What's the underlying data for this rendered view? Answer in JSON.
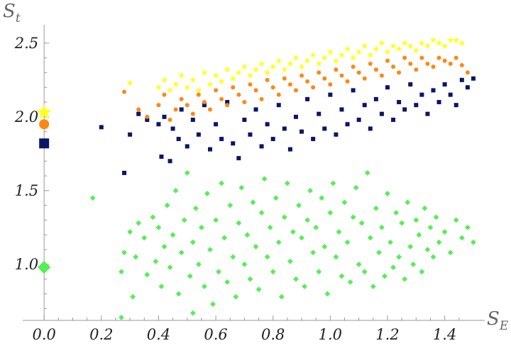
{
  "chart_data": {
    "type": "scatter",
    "xlabel": {
      "main": "S",
      "sub": "E"
    },
    "ylabel": {
      "main": "S",
      "sub": "t"
    },
    "xlim": [
      -0.05,
      1.52
    ],
    "ylim": [
      0.62,
      2.6
    ],
    "xticks": [
      {
        "value": 0.0,
        "label": "0.0"
      },
      {
        "value": 0.2,
        "label": "0.2"
      },
      {
        "value": 0.4,
        "label": "0.4"
      },
      {
        "value": 0.6,
        "label": "0.6"
      },
      {
        "value": 0.8,
        "label": "0.8"
      },
      {
        "value": 1.0,
        "label": "1.0"
      },
      {
        "value": 1.2,
        "label": "1.2"
      },
      {
        "value": 1.4,
        "label": "1.4"
      }
    ],
    "yticks": [
      {
        "value": 1.0,
        "label": "1.0"
      },
      {
        "value": 1.5,
        "label": "1.5"
      },
      {
        "value": 2.0,
        "label": "2.0"
      },
      {
        "value": 2.5,
        "label": "2.5"
      }
    ],
    "grid": false,
    "legend": "none",
    "series": [
      {
        "marker": "diamond",
        "color": "#55ee55",
        "highlight": {
          "x": 0.0,
          "y": 0.98
        },
        "points": [
          [
            0.17,
            1.45
          ],
          [
            0.27,
            0.64
          ],
          [
            0.27,
            0.95
          ],
          [
            0.28,
            1.08
          ],
          [
            0.3,
            1.22
          ],
          [
            0.31,
            0.78
          ],
          [
            0.32,
            1.05
          ],
          [
            0.33,
            1.28
          ],
          [
            0.35,
            1.18
          ],
          [
            0.36,
            0.93
          ],
          [
            0.38,
            1.32
          ],
          [
            0.39,
            1.02
          ],
          [
            0.4,
            1.25
          ],
          [
            0.41,
            0.85
          ],
          [
            0.42,
            1.12
          ],
          [
            0.43,
            1.4
          ],
          [
            0.44,
            0.98
          ],
          [
            0.45,
            1.2
          ],
          [
            0.46,
            1.5
          ],
          [
            0.47,
            0.8
          ],
          [
            0.48,
            1.08
          ],
          [
            0.49,
            1.3
          ],
          [
            0.5,
            1.62
          ],
          [
            0.51,
            0.92
          ],
          [
            0.52,
            0.67
          ],
          [
            0.52,
            1.15
          ],
          [
            0.53,
            1.38
          ],
          [
            0.54,
            1.0
          ],
          [
            0.55,
            1.25
          ],
          [
            0.56,
            0.85
          ],
          [
            0.57,
            1.48
          ],
          [
            0.58,
            1.1
          ],
          [
            0.59,
            0.73
          ],
          [
            0.6,
            1.3
          ],
          [
            0.61,
            0.95
          ],
          [
            0.62,
            1.55
          ],
          [
            0.63,
            1.18
          ],
          [
            0.64,
            0.88
          ],
          [
            0.65,
            1.4
          ],
          [
            0.66,
            1.05
          ],
          [
            0.67,
            0.78
          ],
          [
            0.68,
            1.28
          ],
          [
            0.69,
            1.52
          ],
          [
            0.7,
            1.0
          ],
          [
            0.71,
            1.2
          ],
          [
            0.72,
            0.9
          ],
          [
            0.73,
            1.42
          ],
          [
            0.74,
            1.12
          ],
          [
            0.75,
            0.83
          ],
          [
            0.76,
            1.35
          ],
          [
            0.77,
            1.58
          ],
          [
            0.78,
            1.05
          ],
          [
            0.79,
            1.25
          ],
          [
            0.8,
            0.95
          ],
          [
            0.81,
            1.45
          ],
          [
            0.82,
            1.15
          ],
          [
            0.83,
            0.78
          ],
          [
            0.84,
            1.32
          ],
          [
            0.85,
            1.55
          ],
          [
            0.86,
            1.02
          ],
          [
            0.87,
            1.22
          ],
          [
            0.88,
            0.9
          ],
          [
            0.89,
            1.4
          ],
          [
            0.9,
            1.18
          ],
          [
            0.91,
            0.85
          ],
          [
            0.92,
            1.3
          ],
          [
            0.93,
            1.5
          ],
          [
            0.94,
            1.08
          ],
          [
            0.95,
            1.25
          ],
          [
            0.96,
            0.95
          ],
          [
            0.97,
            1.45
          ],
          [
            0.98,
            1.12
          ],
          [
            0.99,
            0.8
          ],
          [
            1.0,
            1.35
          ],
          [
            1.01,
            1.55
          ],
          [
            1.02,
            1.05
          ],
          [
            1.03,
            1.22
          ],
          [
            1.04,
            0.92
          ],
          [
            1.05,
            1.42
          ],
          [
            1.06,
            1.15
          ],
          [
            1.07,
            0.88
          ],
          [
            1.08,
            1.32
          ],
          [
            1.09,
            1.52
          ],
          [
            1.1,
            1.0
          ],
          [
            1.11,
            1.28
          ],
          [
            1.12,
            0.95
          ],
          [
            1.13,
            1.62
          ],
          [
            1.14,
            1.18
          ],
          [
            1.15,
            0.85
          ],
          [
            1.16,
            1.38
          ],
          [
            1.17,
            1.08
          ],
          [
            1.18,
            1.25
          ],
          [
            1.19,
            0.92
          ],
          [
            1.2,
            1.48
          ],
          [
            1.21,
            1.15
          ],
          [
            1.22,
            0.98
          ],
          [
            1.23,
            1.35
          ],
          [
            1.24,
            1.05
          ],
          [
            1.25,
            1.28
          ],
          [
            1.26,
            0.9
          ],
          [
            1.27,
            1.42
          ],
          [
            1.28,
            1.12
          ],
          [
            1.29,
            1.0
          ],
          [
            1.3,
            1.3
          ],
          [
            1.31,
            1.2
          ],
          [
            1.32,
            0.95
          ],
          [
            1.33,
            1.38
          ],
          [
            1.34,
            1.1
          ],
          [
            1.35,
            1.25
          ],
          [
            1.36,
            1.05
          ],
          [
            1.37,
            1.32
          ],
          [
            1.38,
            1.15
          ],
          [
            1.4,
            1.22
          ],
          [
            1.42,
            1.08
          ],
          [
            1.44,
            1.3
          ],
          [
            1.46,
            1.18
          ],
          [
            1.48,
            1.25
          ],
          [
            1.5,
            1.15
          ]
        ]
      },
      {
        "marker": "square",
        "color": "#0b1666",
        "highlight": {
          "x": 0.0,
          "y": 1.82
        },
        "points": [
          [
            0.2,
            1.93
          ],
          [
            0.28,
            1.62
          ],
          [
            0.3,
            1.88
          ],
          [
            0.33,
            2.02
          ],
          [
            0.36,
            1.98
          ],
          [
            0.4,
            1.95
          ],
          [
            0.41,
            1.73
          ],
          [
            0.42,
            2.0
          ],
          [
            0.44,
            1.7
          ],
          [
            0.45,
            1.92
          ],
          [
            0.47,
            1.85
          ],
          [
            0.48,
            2.05
          ],
          [
            0.5,
            1.8
          ],
          [
            0.52,
            1.98
          ],
          [
            0.54,
            1.88
          ],
          [
            0.56,
            2.08
          ],
          [
            0.58,
            1.78
          ],
          [
            0.6,
            1.95
          ],
          [
            0.62,
            1.85
          ],
          [
            0.64,
            2.1
          ],
          [
            0.66,
            1.82
          ],
          [
            0.68,
            1.72
          ],
          [
            0.7,
            1.98
          ],
          [
            0.72,
            1.88
          ],
          [
            0.74,
            2.05
          ],
          [
            0.76,
            1.8
          ],
          [
            0.78,
            1.95
          ],
          [
            0.8,
            1.85
          ],
          [
            0.82,
            2.08
          ],
          [
            0.84,
            1.92
          ],
          [
            0.86,
            1.78
          ],
          [
            0.88,
            2.0
          ],
          [
            0.9,
            1.9
          ],
          [
            0.92,
            2.12
          ],
          [
            0.94,
            1.85
          ],
          [
            0.96,
            2.02
          ],
          [
            0.98,
            1.92
          ],
          [
            1.0,
            2.15
          ],
          [
            1.02,
            1.88
          ],
          [
            1.04,
            2.05
          ],
          [
            1.06,
            1.95
          ],
          [
            1.08,
            2.18
          ],
          [
            1.1,
            1.98
          ],
          [
            1.12,
            2.08
          ],
          [
            1.14,
            1.92
          ],
          [
            1.16,
            2.12
          ],
          [
            1.18,
            2.02
          ],
          [
            1.2,
            2.2
          ],
          [
            1.22,
            1.98
          ],
          [
            1.24,
            2.1
          ],
          [
            1.26,
            2.05
          ],
          [
            1.28,
            2.22
          ],
          [
            1.3,
            2.08
          ],
          [
            1.32,
            2.15
          ],
          [
            1.34,
            2.02
          ],
          [
            1.36,
            2.18
          ],
          [
            1.38,
            2.1
          ],
          [
            1.4,
            2.22
          ],
          [
            1.42,
            2.15
          ],
          [
            1.44,
            2.08
          ],
          [
            1.46,
            2.25
          ],
          [
            1.48,
            2.2
          ],
          [
            1.5,
            2.26
          ]
        ]
      },
      {
        "marker": "circle",
        "color": "#ff8811",
        "highlight": {
          "x": 0.0,
          "y": 1.95
        },
        "points": [
          [
            0.28,
            2.17
          ],
          [
            0.33,
            2.05
          ],
          [
            0.36,
            2.0
          ],
          [
            0.4,
            2.08
          ],
          [
            0.42,
            2.15
          ],
          [
            0.44,
            1.98
          ],
          [
            0.46,
            2.05
          ],
          [
            0.48,
            2.12
          ],
          [
            0.5,
            2.08
          ],
          [
            0.52,
            2.02
          ],
          [
            0.54,
            2.15
          ],
          [
            0.56,
            2.1
          ],
          [
            0.58,
            2.05
          ],
          [
            0.6,
            2.18
          ],
          [
            0.62,
            2.12
          ],
          [
            0.64,
            2.08
          ],
          [
            0.66,
            2.2
          ],
          [
            0.68,
            2.15
          ],
          [
            0.7,
            2.1
          ],
          [
            0.72,
            2.22
          ],
          [
            0.74,
            2.18
          ],
          [
            0.76,
            2.12
          ],
          [
            0.78,
            2.25
          ],
          [
            0.8,
            2.2
          ],
          [
            0.82,
            2.15
          ],
          [
            0.84,
            2.26
          ],
          [
            0.86,
            2.22
          ],
          [
            0.88,
            2.18
          ],
          [
            0.9,
            2.28
          ],
          [
            0.92,
            2.24
          ],
          [
            0.94,
            2.2
          ],
          [
            0.96,
            2.3
          ],
          [
            0.98,
            2.26
          ],
          [
            1.0,
            2.22
          ],
          [
            1.02,
            2.32
          ],
          [
            1.04,
            2.28
          ],
          [
            1.06,
            2.24
          ],
          [
            1.08,
            2.34
          ],
          [
            1.1,
            2.3
          ],
          [
            1.12,
            2.26
          ],
          [
            1.14,
            2.36
          ],
          [
            1.16,
            2.32
          ],
          [
            1.18,
            2.28
          ],
          [
            1.2,
            2.38
          ],
          [
            1.22,
            2.34
          ],
          [
            1.24,
            2.3
          ],
          [
            1.26,
            2.4
          ],
          [
            1.28,
            2.36
          ],
          [
            1.3,
            2.32
          ],
          [
            1.32,
            2.4
          ],
          [
            1.34,
            2.36
          ],
          [
            1.36,
            2.34
          ],
          [
            1.38,
            2.4
          ],
          [
            1.4,
            2.38
          ],
          [
            1.42,
            2.36
          ],
          [
            1.44,
            2.4
          ],
          [
            1.46,
            2.35
          ],
          [
            1.48,
            2.3
          ]
        ]
      },
      {
        "marker": "star",
        "color": "#ffff22",
        "highlight": {
          "x": 0.0,
          "y": 2.03
        },
        "points": [
          [
            0.3,
            2.23
          ],
          [
            0.4,
            2.2
          ],
          [
            0.42,
            2.25
          ],
          [
            0.44,
            2.18
          ],
          [
            0.46,
            2.22
          ],
          [
            0.48,
            2.28
          ],
          [
            0.5,
            2.2
          ],
          [
            0.52,
            2.25
          ],
          [
            0.54,
            2.18
          ],
          [
            0.56,
            2.3
          ],
          [
            0.58,
            2.22
          ],
          [
            0.6,
            2.28
          ],
          [
            0.62,
            2.24
          ],
          [
            0.64,
            2.32
          ],
          [
            0.66,
            2.26
          ],
          [
            0.68,
            2.3
          ],
          [
            0.7,
            2.34
          ],
          [
            0.72,
            2.28
          ],
          [
            0.74,
            2.32
          ],
          [
            0.76,
            2.36
          ],
          [
            0.78,
            2.3
          ],
          [
            0.8,
            2.34
          ],
          [
            0.82,
            2.38
          ],
          [
            0.84,
            2.32
          ],
          [
            0.86,
            2.36
          ],
          [
            0.88,
            2.4
          ],
          [
            0.9,
            2.34
          ],
          [
            0.92,
            2.38
          ],
          [
            0.94,
            2.42
          ],
          [
            0.96,
            2.36
          ],
          [
            0.98,
            2.4
          ],
          [
            1.0,
            2.44
          ],
          [
            1.02,
            2.38
          ],
          [
            1.04,
            2.42
          ],
          [
            1.06,
            2.46
          ],
          [
            1.08,
            2.4
          ],
          [
            1.1,
            2.44
          ],
          [
            1.12,
            2.48
          ],
          [
            1.14,
            2.42
          ],
          [
            1.16,
            2.46
          ],
          [
            1.18,
            2.5
          ],
          [
            1.2,
            2.44
          ],
          [
            1.22,
            2.48
          ],
          [
            1.24,
            2.46
          ],
          [
            1.26,
            2.5
          ],
          [
            1.28,
            2.48
          ],
          [
            1.3,
            2.45
          ],
          [
            1.32,
            2.5
          ],
          [
            1.34,
            2.48
          ],
          [
            1.36,
            2.52
          ],
          [
            1.38,
            2.5
          ],
          [
            1.4,
            2.48
          ],
          [
            1.42,
            2.52
          ],
          [
            1.44,
            2.52
          ],
          [
            1.46,
            2.5
          ]
        ]
      }
    ]
  }
}
